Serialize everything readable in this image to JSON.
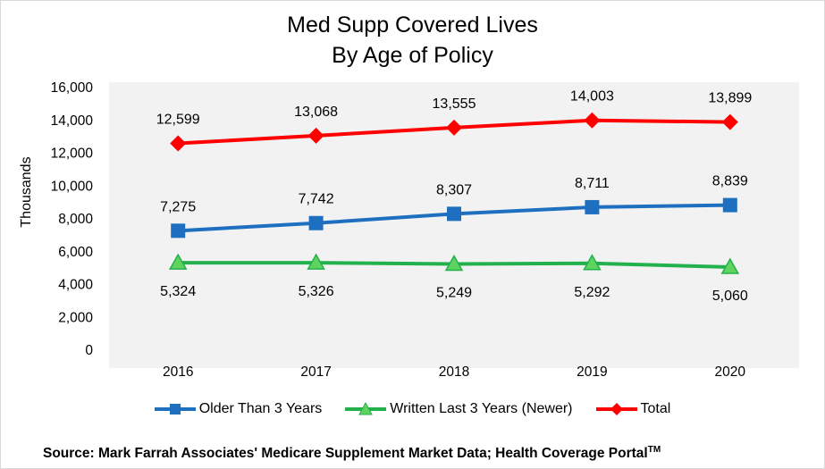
{
  "chart_data": {
    "type": "line",
    "title": [
      "Med Supp Covered Lives",
      "By Age of Policy"
    ],
    "ylabel": "Thousands",
    "xlabel": "",
    "categories": [
      "2016",
      "2017",
      "2018",
      "2019",
      "2020"
    ],
    "ylim": [
      0,
      16000
    ],
    "yticks": [
      0,
      2000,
      4000,
      6000,
      8000,
      10000,
      12000,
      14000,
      16000
    ],
    "ytick_labels": [
      "0",
      "2,000",
      "4,000",
      "6,000",
      "8,000",
      "10,000",
      "12,000",
      "14,000",
      "16,000"
    ],
    "grid": false,
    "legend_position": "bottom",
    "series": [
      {
        "name": "Older Than 3 Years",
        "values": [
          7275,
          7742,
          8307,
          8711,
          8839
        ],
        "labels": [
          "7,275",
          "7,742",
          "8,307",
          "8,711",
          "8,839"
        ],
        "label_position": "above",
        "color": "#1f6fc0",
        "marker": "square"
      },
      {
        "name": "Written Last 3 Years (Newer)",
        "values": [
          5324,
          5326,
          5249,
          5292,
          5060
        ],
        "labels": [
          "5,324",
          "5,326",
          "5,249",
          "5,292",
          "5,060"
        ],
        "label_position": "below",
        "color": "#22b14c",
        "marker": "triangle"
      },
      {
        "name": "Total",
        "values": [
          12599,
          13068,
          13555,
          14003,
          13899
        ],
        "labels": [
          "12,599",
          "13,068",
          "13,555",
          "14,003",
          "13,899"
        ],
        "label_position": "above",
        "color": "#ff0000",
        "marker": "diamond"
      }
    ]
  },
  "source": {
    "text": "Source:  Mark Farrah Associates' Medicare Supplement Market Data; Health Coverage Portal",
    "superscript": "TM"
  }
}
